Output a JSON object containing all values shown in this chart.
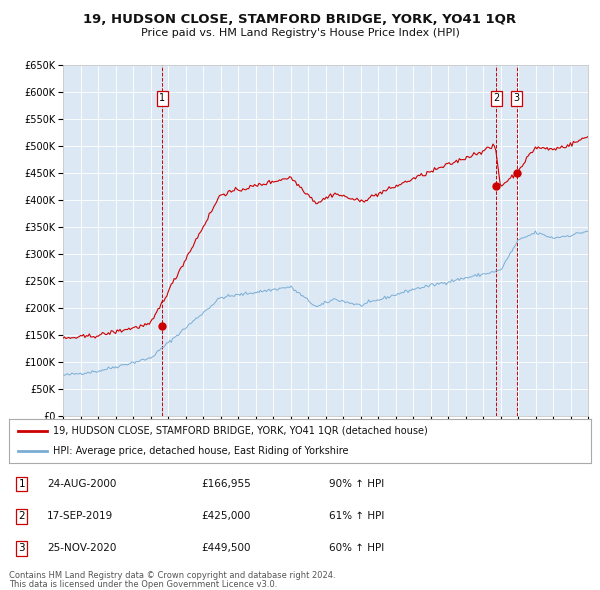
{
  "title": "19, HUDSON CLOSE, STAMFORD BRIDGE, YORK, YO41 1QR",
  "subtitle": "Price paid vs. HM Land Registry's House Price Index (HPI)",
  "bg_color": "#dce9f5",
  "fig_bg_color": "#ffffff",
  "red_line_color": "#cc0000",
  "blue_line_color": "#7aadd4",
  "grid_color": "#ffffff",
  "legend_line1": "19, HUDSON CLOSE, STAMFORD BRIDGE, YORK, YO41 1QR (detached house)",
  "legend_line2": "HPI: Average price, detached house, East Riding of Yorkshire",
  "sale1_date": "24-AUG-2000",
  "sale1_price": 166955,
  "sale1_pct": "90% ↑ HPI",
  "sale2_date": "17-SEP-2019",
  "sale2_price": 425000,
  "sale2_pct": "61% ↑ HPI",
  "sale3_date": "25-NOV-2020",
  "sale3_price": 449500,
  "sale3_pct": "60% ↑ HPI",
  "footer1": "Contains HM Land Registry data © Crown copyright and database right 2024.",
  "footer2": "This data is licensed under the Open Government Licence v3.0.",
  "ylim_max": 650000,
  "ylim_min": 0,
  "year_start": 1995,
  "year_end": 2025
}
